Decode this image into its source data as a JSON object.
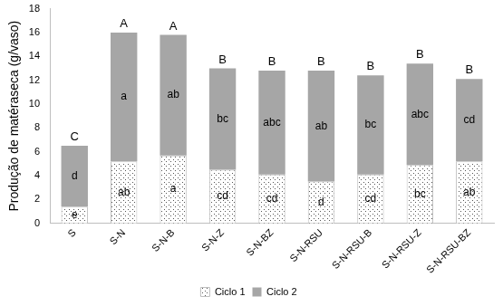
{
  "chart_data": {
    "type": "bar",
    "stacked": true,
    "y_label": "Produção de matéraseca (g/vaso)",
    "categories": [
      "S",
      "S-N",
      "S-N-B",
      "S-N-Z",
      "S-N-BZ",
      "S-N-RSU",
      "S-N-RSU-B",
      "S-N-RSU-Z",
      "S-N-RSU-BZ"
    ],
    "series": [
      {
        "name": "Ciclo 1",
        "color": "#ffffff",
        "marker": "dots",
        "values": [
          1.4,
          5.2,
          5.7,
          4.5,
          4.1,
          3.5,
          4.1,
          4.9,
          5.2
        ],
        "annotations": [
          "e",
          "ab",
          "a",
          "cd",
          "cd",
          "d",
          "cd",
          "bc",
          "ab"
        ]
      },
      {
        "name": "Ciclo 2",
        "color": "#a6a6a6",
        "values": [
          5.1,
          10.8,
          10.1,
          8.5,
          8.7,
          9.3,
          8.3,
          8.5,
          6.9
        ],
        "annotations": [
          "d",
          "a",
          "ab",
          "bc",
          "abc",
          "ab",
          "bc",
          "abc",
          "cd"
        ]
      }
    ],
    "annotations": [
      "C",
      "A",
      "A",
      "B",
      "B",
      "B",
      "B",
      "B",
      "B"
    ],
    "ylim": [
      0,
      18
    ],
    "yticks": [
      0,
      2,
      4,
      6,
      8,
      10,
      12,
      14,
      16,
      18
    ],
    "grid": false,
    "legend": "bottom"
  }
}
